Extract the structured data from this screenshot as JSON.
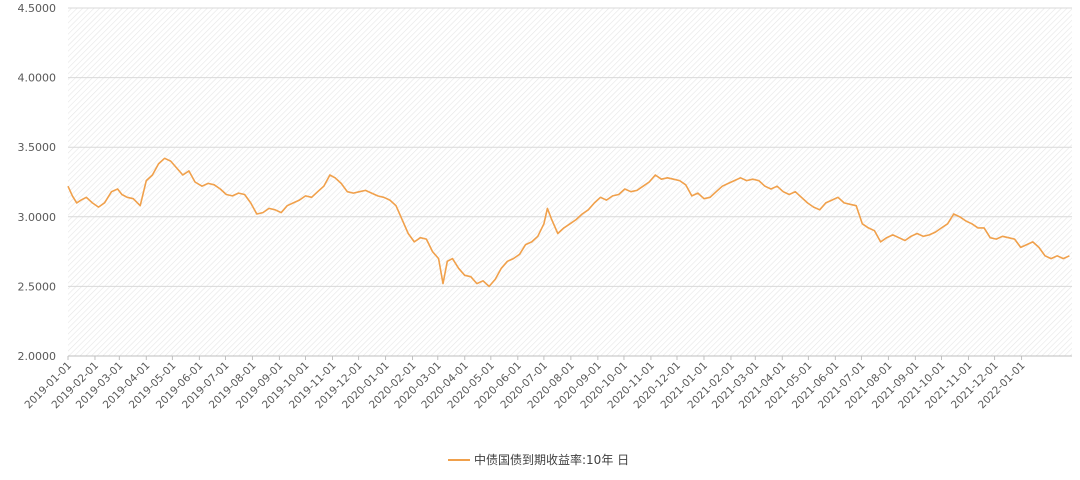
{
  "chart_data": {
    "type": "line",
    "title": "",
    "xlabel": "",
    "ylabel": "",
    "ylim": [
      2.0,
      4.5
    ],
    "y_ticks": [
      "2.0000",
      "2.5000",
      "3.0000",
      "3.5000",
      "4.0000",
      "4.5000"
    ],
    "x_ticks": [
      "2019-01-01",
      "2019-02-01",
      "2019-03-01",
      "2019-04-01",
      "2019-05-01",
      "2019-06-01",
      "2019-07-01",
      "2019-08-01",
      "2019-09-01",
      "2019-10-01",
      "2019-11-01",
      "2019-12-01",
      "2020-01-01",
      "2020-02-01",
      "2020-03-01",
      "2020-04-01",
      "2020-05-01",
      "2020-06-01",
      "2020-07-01",
      "2020-08-01",
      "2020-09-01",
      "2020-10-01",
      "2020-11-01",
      "2020-12-01",
      "2021-01-01",
      "2021-02-01",
      "2021-03-01",
      "2021-04-01",
      "2021-05-01",
      "2021-06-01",
      "2021-07-01",
      "2021-08-01",
      "2021-09-01",
      "2021-10-01",
      "2021-11-01",
      "2021-12-01",
      "2022-01-01"
    ],
    "xlim": [
      "2019-01-01",
      "2022-02-28"
    ],
    "grid": "horizontal",
    "background": "diagonal-hatch",
    "legend": "bottom-center",
    "series": [
      {
        "name": "中债国债到期收益率:10年 日",
        "color": "#f0a04b",
        "x": [
          "2019-01-01",
          "2019-01-06",
          "2019-01-11",
          "2019-01-16",
          "2019-01-22",
          "2019-01-29",
          "2019-02-05",
          "2019-02-12",
          "2019-02-20",
          "2019-02-27",
          "2019-03-04",
          "2019-03-10",
          "2019-03-17",
          "2019-03-25",
          "2019-04-01",
          "2019-04-08",
          "2019-04-15",
          "2019-04-22",
          "2019-04-29",
          "2019-05-06",
          "2019-05-13",
          "2019-05-20",
          "2019-05-27",
          "2019-06-04",
          "2019-06-11",
          "2019-06-18",
          "2019-06-25",
          "2019-07-02",
          "2019-07-09",
          "2019-07-16",
          "2019-07-23",
          "2019-07-30",
          "2019-08-06",
          "2019-08-13",
          "2019-08-20",
          "2019-08-27",
          "2019-09-03",
          "2019-09-10",
          "2019-09-17",
          "2019-09-24",
          "2019-10-01",
          "2019-10-08",
          "2019-10-15",
          "2019-10-22",
          "2019-10-29",
          "2019-11-04",
          "2019-11-11",
          "2019-11-18",
          "2019-11-25",
          "2019-12-02",
          "2019-12-09",
          "2019-12-16",
          "2019-12-23",
          "2019-12-30",
          "2020-01-06",
          "2020-01-13",
          "2020-01-20",
          "2020-01-27",
          "2020-02-03",
          "2020-02-10",
          "2020-02-17",
          "2020-02-24",
          "2020-03-02",
          "2020-03-07",
          "2020-03-12",
          "2020-03-18",
          "2020-03-25",
          "2020-04-01",
          "2020-04-08",
          "2020-04-15",
          "2020-04-22",
          "2020-04-29",
          "2020-05-06",
          "2020-05-13",
          "2020-05-20",
          "2020-05-27",
          "2020-06-03",
          "2020-06-10",
          "2020-06-17",
          "2020-06-24",
          "2020-07-01",
          "2020-07-05",
          "2020-07-10",
          "2020-07-17",
          "2020-07-24",
          "2020-07-31",
          "2020-08-07",
          "2020-08-14",
          "2020-08-21",
          "2020-08-28",
          "2020-09-04",
          "2020-09-11",
          "2020-09-18",
          "2020-09-25",
          "2020-10-02",
          "2020-10-09",
          "2020-10-16",
          "2020-10-23",
          "2020-10-30",
          "2020-11-06",
          "2020-11-13",
          "2020-11-20",
          "2020-11-27",
          "2020-12-04",
          "2020-12-11",
          "2020-12-18",
          "2020-12-25",
          "2021-01-01",
          "2021-01-08",
          "2021-01-15",
          "2021-01-22",
          "2021-01-29",
          "2021-02-05",
          "2021-02-12",
          "2021-02-19",
          "2021-02-26",
          "2021-03-05",
          "2021-03-12",
          "2021-03-19",
          "2021-03-26",
          "2021-04-02",
          "2021-04-09",
          "2021-04-16",
          "2021-04-23",
          "2021-04-30",
          "2021-05-07",
          "2021-05-14",
          "2021-05-21",
          "2021-05-28",
          "2021-06-04",
          "2021-06-11",
          "2021-06-18",
          "2021-06-25",
          "2021-07-02",
          "2021-07-09",
          "2021-07-16",
          "2021-07-23",
          "2021-07-30",
          "2021-08-06",
          "2021-08-13",
          "2021-08-20",
          "2021-08-27",
          "2021-09-03",
          "2021-09-10",
          "2021-09-17",
          "2021-09-24",
          "2021-10-01",
          "2021-10-08",
          "2021-10-15",
          "2021-10-22",
          "2021-10-29",
          "2021-11-05",
          "2021-11-12",
          "2021-11-19",
          "2021-11-26",
          "2021-12-03",
          "2021-12-10",
          "2021-12-17",
          "2021-12-24",
          "2021-12-31",
          "2022-01-07",
          "2022-01-14",
          "2022-01-21",
          "2022-01-28",
          "2022-02-04",
          "2022-02-11",
          "2022-02-18",
          "2022-02-25"
        ],
        "values": [
          3.22,
          3.15,
          3.1,
          3.12,
          3.14,
          3.1,
          3.07,
          3.1,
          3.18,
          3.2,
          3.16,
          3.14,
          3.13,
          3.08,
          3.26,
          3.3,
          3.38,
          3.42,
          3.4,
          3.35,
          3.3,
          3.33,
          3.25,
          3.22,
          3.24,
          3.23,
          3.2,
          3.16,
          3.15,
          3.17,
          3.16,
          3.1,
          3.02,
          3.03,
          3.06,
          3.05,
          3.03,
          3.08,
          3.1,
          3.12,
          3.15,
          3.14,
          3.18,
          3.22,
          3.3,
          3.28,
          3.24,
          3.18,
          3.17,
          3.18,
          3.19,
          3.17,
          3.15,
          3.14,
          3.12,
          3.08,
          2.98,
          2.88,
          2.82,
          2.85,
          2.84,
          2.75,
          2.7,
          2.52,
          2.68,
          2.7,
          2.63,
          2.58,
          2.57,
          2.52,
          2.54,
          2.5,
          2.55,
          2.63,
          2.68,
          2.7,
          2.73,
          2.8,
          2.82,
          2.86,
          2.95,
          3.06,
          2.98,
          2.88,
          2.92,
          2.95,
          2.98,
          3.02,
          3.05,
          3.1,
          3.14,
          3.12,
          3.15,
          3.16,
          3.2,
          3.18,
          3.19,
          3.22,
          3.25,
          3.3,
          3.27,
          3.28,
          3.27,
          3.26,
          3.23,
          3.15,
          3.17,
          3.13,
          3.14,
          3.18,
          3.22,
          3.24,
          3.26,
          3.28,
          3.26,
          3.27,
          3.26,
          3.22,
          3.2,
          3.22,
          3.18,
          3.16,
          3.18,
          3.14,
          3.1,
          3.07,
          3.05,
          3.1,
          3.12,
          3.14,
          3.1,
          3.09,
          3.08,
          2.95,
          2.92,
          2.9,
          2.82,
          2.85,
          2.87,
          2.85,
          2.83,
          2.86,
          2.88,
          2.86,
          2.87,
          2.89,
          2.92,
          2.95,
          3.02,
          3.0,
          2.97,
          2.95,
          2.92,
          2.92,
          2.85,
          2.84,
          2.86,
          2.85,
          2.84,
          2.78,
          2.8,
          2.82,
          2.78,
          2.72,
          2.7,
          2.72,
          2.7,
          2.72
        ]
      }
    ]
  }
}
